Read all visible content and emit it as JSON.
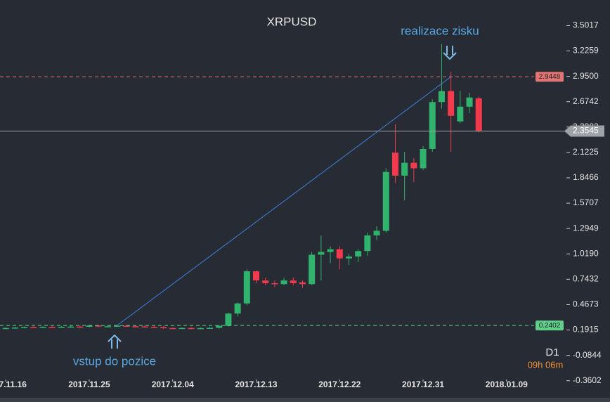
{
  "chart_data": {
    "type": "candlestick",
    "title": "XRPUSD",
    "timeframe": "D1",
    "countdown": "09h 06m",
    "x": [
      "2017.11.16",
      "2017.11.17",
      "2017.11.18",
      "2017.11.19",
      "2017.11.20",
      "2017.11.21",
      "2017.11.22",
      "2017.11.23",
      "2017.11.24",
      "2017.11.25",
      "2017.11.26",
      "2017.11.27",
      "2017.11.28",
      "2017.11.29",
      "2017.11.30",
      "2017.12.01",
      "2017.12.02",
      "2017.12.03",
      "2017.12.04",
      "2017.12.05",
      "2017.12.06",
      "2017.12.07",
      "2017.12.08",
      "2017.12.09",
      "2017.12.10",
      "2017.12.11",
      "2017.12.12",
      "2017.12.13",
      "2017.12.14",
      "2017.12.15",
      "2017.12.16",
      "2017.12.17",
      "2017.12.18",
      "2017.12.19",
      "2017.12.20",
      "2017.12.21",
      "2017.12.22",
      "2017.12.23",
      "2017.12.24",
      "2017.12.25",
      "2017.12.26",
      "2017.12.27",
      "2017.12.28",
      "2017.12.29",
      "2017.12.30",
      "2017.12.31",
      "2018.01.01",
      "2018.01.02",
      "2018.01.03",
      "2018.01.04",
      "2018.01.05",
      "2018.01.06"
    ],
    "open": [
      0.205,
      0.213,
      0.218,
      0.222,
      0.22,
      0.224,
      0.222,
      0.226,
      0.228,
      0.226,
      0.24,
      0.23,
      0.232,
      0.238,
      0.232,
      0.23,
      0.226,
      0.224,
      0.212,
      0.21,
      0.213,
      0.209,
      0.212,
      0.215,
      0.236,
      0.37,
      0.48,
      0.83,
      0.73,
      0.7,
      0.69,
      0.73,
      0.71,
      0.69,
      1.01,
      1.04,
      1.07,
      0.97,
      0.99,
      1.05,
      1.22,
      1.27,
      2.12,
      1.87,
      2.01,
      1.95,
      2.16,
      2.67,
      2.79,
      2.46,
      2.62,
      2.71
    ],
    "high": [
      0.221,
      0.226,
      0.23,
      0.23,
      0.232,
      0.232,
      0.234,
      0.236,
      0.236,
      0.248,
      0.248,
      0.24,
      0.246,
      0.246,
      0.24,
      0.238,
      0.234,
      0.232,
      0.22,
      0.221,
      0.221,
      0.22,
      0.223,
      0.244,
      0.38,
      0.49,
      0.85,
      0.84,
      0.76,
      0.73,
      0.76,
      0.76,
      0.73,
      1.04,
      1.22,
      1.1,
      1.1,
      1.02,
      1.07,
      1.25,
      1.32,
      1.95,
      2.43,
      2.13,
      2.06,
      2.19,
      2.7,
      3.3,
      3.0,
      2.79,
      2.77,
      2.73
    ],
    "low": [
      0.197,
      0.205,
      0.21,
      0.212,
      0.212,
      0.214,
      0.214,
      0.218,
      0.218,
      0.218,
      0.222,
      0.222,
      0.224,
      0.224,
      0.222,
      0.218,
      0.216,
      0.204,
      0.202,
      0.202,
      0.201,
      0.201,
      0.204,
      0.207,
      0.23,
      0.34,
      0.46,
      0.7,
      0.68,
      0.66,
      0.68,
      0.68,
      0.65,
      0.68,
      0.73,
      0.92,
      0.85,
      0.9,
      0.93,
      1.0,
      1.17,
      1.25,
      1.79,
      1.6,
      1.8,
      1.93,
      2.13,
      2.6,
      2.13,
      2.44,
      2.55,
      2.34
    ],
    "close": [
      0.213,
      0.218,
      0.222,
      0.22,
      0.224,
      0.222,
      0.226,
      0.228,
      0.226,
      0.24,
      0.23,
      0.232,
      0.238,
      0.232,
      0.23,
      0.226,
      0.224,
      0.212,
      0.21,
      0.213,
      0.209,
      0.212,
      0.215,
      0.236,
      0.37,
      0.48,
      0.83,
      0.73,
      0.7,
      0.69,
      0.73,
      0.7,
      0.69,
      1.01,
      1.04,
      1.07,
      0.97,
      0.99,
      1.05,
      1.22,
      1.27,
      1.91,
      1.87,
      2.01,
      1.95,
      2.16,
      2.67,
      2.79,
      2.52,
      2.62,
      2.72,
      2.3545
    ],
    "up_color": "#2fb36d",
    "down_color": "#f23a4c",
    "xlim": [
      "2017.11.15",
      "2018.01.15"
    ],
    "xticks": [
      "2017.11.16",
      "2017.11.25",
      "2017.12.04",
      "2017.12.13",
      "2017.12.22",
      "2017.12.31",
      "2018.01.09"
    ],
    "ylim": [
      -0.5,
      3.78
    ],
    "yticks": [
      3.5017,
      3.2259,
      {
        "value": 2.95,
        "label": "2.9500"
      },
      2.6742,
      2.3983,
      2.1225,
      1.8466,
      1.5707,
      1.2949,
      {
        "value": 1.019,
        "label": "1.0190"
      },
      0.7432,
      0.4673,
      0.1915,
      -0.0844,
      -0.3602
    ],
    "levels": [
      {
        "value": 2.9448,
        "color": "#e37474",
        "style": "dashed"
      },
      {
        "value": 0.2402,
        "color": "#5fcf8a",
        "style": "dashed"
      },
      {
        "value": 2.3545,
        "color": "#9ea3a8",
        "style": "solid"
      }
    ],
    "trendline": {
      "x": [
        "2017.11.28",
        "2018.01.03"
      ],
      "y": [
        0.2402,
        2.9448
      ],
      "color": "#3f7fe0"
    },
    "annotations": [
      "realizace zisku",
      "vstup do pozice"
    ]
  }
}
